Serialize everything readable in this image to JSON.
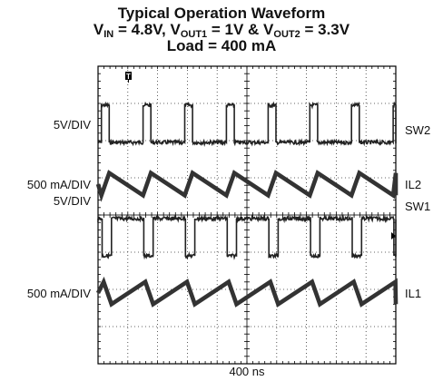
{
  "title": {
    "line1": "Typical Operation Waveform",
    "line2": {
      "v_in_prefix": "V",
      "v_in_sub": "IN",
      "v_in_value": " = 4.8V, V",
      "v_out1_sub": "OUT1",
      "v_out1_value": " = 1V & V",
      "v_out2_sub": "OUT2",
      "v_out2_value": " = 3.3V"
    },
    "line3": "Load = 400 mA"
  },
  "chart_data": {
    "type": "line",
    "title": "Typical Operation Waveform",
    "x_scale": "400 ns",
    "x_unit": "ns",
    "x_per_div": 400,
    "x_divisions": 10,
    "x_range": [
      0,
      4000
    ],
    "y_divisions": 8,
    "grid": true,
    "trigger_marker": "T",
    "series": [
      {
        "name": "SW2",
        "scale_label": "5V/DIV",
        "kind": "pulse",
        "low_div": 0.0,
        "high_div": 1.0,
        "period_ns": 560,
        "high_duration_ns": 105,
        "first_rise_ns": 45,
        "noise_div": 0.05
      },
      {
        "name": "IL2",
        "scale_label": "500 mA/DIV",
        "kind": "sawtooth",
        "min_div": -0.3,
        "max_div": 0.3,
        "period_ns": 560,
        "rise_duration_ns": 105,
        "first_rise_ns": 45,
        "thickness_div": 0.08
      },
      {
        "name": "SW1",
        "scale_label": "5V/DIV",
        "kind": "pulse-inverted",
        "low_div": -1.0,
        "high_div": 0.0,
        "period_ns": 560,
        "low_duration_ns": 125,
        "first_fall_ns": 55,
        "noise_div": 0.05
      },
      {
        "name": "IL1",
        "scale_label": "500 mA/DIV",
        "kind": "sawtooth",
        "min_div": -0.3,
        "max_div": 0.3,
        "period_ns": 560,
        "rise_duration_ns": 455,
        "first_rise_ns": 180,
        "thickness_div": 0.08
      }
    ]
  }
}
